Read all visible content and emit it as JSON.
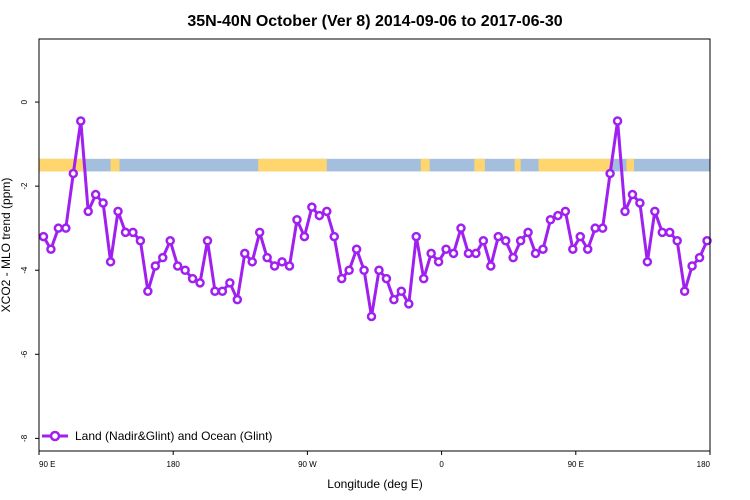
{
  "chart_data": {
    "type": "line",
    "title": "35N-40N October (Ver 8)   2014-09-06 to 2017-06-30",
    "xlabel": "Longitude (deg E)",
    "ylabel": "XCO2 - MLO trend (ppm)",
    "xlim": [
      90,
      540
    ],
    "ylim": [
      -8.3,
      1.5
    ],
    "x_ticks": [
      {
        "value": 90,
        "label": "90 E"
      },
      {
        "value": 180,
        "label": "180"
      },
      {
        "value": 270,
        "label": "90 W"
      },
      {
        "value": 360,
        "label": "0"
      },
      {
        "value": 450,
        "label": "90 E"
      },
      {
        "value": 540,
        "label": "180"
      }
    ],
    "y_ticks": [
      {
        "value": 0,
        "label": "0"
      },
      {
        "value": -2,
        "label": "-2"
      },
      {
        "value": -4,
        "label": "-4"
      },
      {
        "value": -6,
        "label": "-6"
      },
      {
        "value": -8,
        "label": "-8"
      }
    ],
    "grid": false,
    "legend_position": "bottom-left",
    "colors": {
      "series": "#a020f0",
      "land": "#ffd66e",
      "ocean": "#a4bede"
    },
    "surface_band": {
      "y_range": [
        -1.65,
        -1.35
      ],
      "land_segments": [
        [
          90,
          120
        ],
        [
          138,
          144
        ],
        [
          237,
          283
        ],
        [
          346,
          352
        ],
        [
          382,
          389
        ],
        [
          409,
          413
        ],
        [
          425,
          474
        ],
        [
          484,
          489
        ]
      ]
    },
    "series": [
      {
        "name": "Land (Nadir&Glint) and Ocean (Glint)",
        "x": [
          93,
          98,
          103,
          108,
          113,
          118,
          123,
          128,
          133,
          138,
          143,
          148,
          153,
          158,
          163,
          168,
          173,
          178,
          183,
          188,
          193,
          198,
          203,
          208,
          213,
          218,
          223,
          228,
          233,
          238,
          243,
          248,
          253,
          258,
          263,
          268,
          273,
          278,
          283,
          288,
          293,
          298,
          303,
          308,
          313,
          318,
          323,
          328,
          333,
          338,
          343,
          348,
          353,
          358,
          363,
          368,
          373,
          378,
          383,
          388,
          393,
          398,
          403,
          408,
          413,
          418,
          423,
          428,
          433,
          438,
          443,
          448,
          453,
          458,
          463,
          468,
          473,
          478,
          483,
          488,
          493,
          498,
          503,
          508,
          513,
          518,
          523,
          528,
          533,
          538
        ],
        "y": [
          -3.2,
          -3.5,
          -3.0,
          -3.0,
          -1.7,
          -0.45,
          -2.6,
          -2.2,
          -2.4,
          -3.8,
          -2.6,
          -3.1,
          -3.1,
          -3.3,
          -4.5,
          -3.9,
          -3.7,
          -3.3,
          -3.9,
          -4.0,
          -4.2,
          -4.3,
          -3.3,
          -4.5,
          -4.5,
          -4.3,
          -4.7,
          -3.6,
          -3.8,
          -3.1,
          -3.7,
          -3.9,
          -3.8,
          -3.9,
          -2.8,
          -3.2,
          -2.5,
          -2.7,
          -2.6,
          -3.2,
          -4.2,
          -4.0,
          -3.5,
          -4.0,
          -5.1,
          -4.0,
          -4.2,
          -4.7,
          -4.5,
          -4.8,
          -3.2,
          -4.2,
          -3.6,
          -3.8,
          -3.5,
          -3.6,
          -3.0,
          -3.6,
          -3.6,
          -3.3,
          -3.9,
          -3.2,
          -3.3,
          -3.7,
          -3.3,
          -3.1,
          -3.6,
          -3.5,
          -2.8,
          -2.7,
          -2.6,
          -3.5,
          -3.2,
          -3.5,
          -3.0,
          -3.0,
          -1.7,
          -0.45,
          -2.6,
          -2.2,
          -2.4,
          -3.8,
          -2.6,
          -3.1,
          -3.1,
          -3.3,
          -4.5,
          -3.9,
          -3.7,
          -3.3
        ]
      }
    ]
  }
}
